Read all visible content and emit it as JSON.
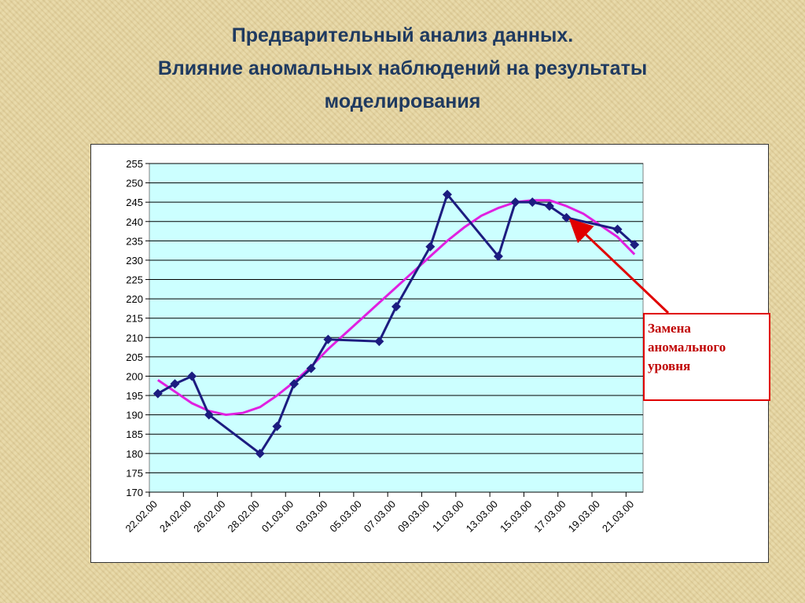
{
  "chart_data": {
    "type": "line",
    "title": "Предварительный анализ данных.",
    "subtitle": "Влияние аномальных наблюдений на результаты моделирования",
    "annotation": "Замена аномального уровня",
    "categories": [
      "22.02.00",
      null,
      "24.02.00",
      null,
      "26.02.00",
      null,
      "28.02.00",
      null,
      "01.03.00",
      null,
      "03.03.00",
      null,
      "05.03.00",
      null,
      "07.03.00",
      null,
      "09.03.00",
      null,
      "11.03.00",
      null,
      "13.03.00",
      null,
      "15.03.00",
      null,
      "17.03.00",
      null,
      "19.03.00",
      null,
      "21.03.00"
    ],
    "series": [
      {
        "color": "#1c1c80",
        "marker": "diamond",
        "values": [
          195.5,
          198,
          200,
          190,
          null,
          null,
          180,
          187,
          198,
          202,
          209.5,
          null,
          null,
          209,
          218,
          null,
          233.5,
          247,
          null,
          null,
          231,
          245,
          245,
          244,
          241,
          null,
          null,
          238,
          234
        ]
      },
      {
        "color": "#e020e0",
        "marker": "none",
        "values": [
          199,
          196,
          193,
          191,
          190,
          190.5,
          192,
          195,
          198.5,
          202.5,
          207,
          211,
          215,
          219,
          223,
          227,
          231,
          235,
          238.5,
          241.5,
          243.5,
          245,
          245.5,
          245.5,
          244,
          242,
          239,
          236,
          231.5
        ]
      }
    ],
    "ylim": [
      170,
      255
    ],
    "yticks": [
      170,
      175,
      180,
      185,
      190,
      195,
      200,
      205,
      210,
      215,
      220,
      225,
      230,
      235,
      240,
      245,
      250,
      255
    ],
    "grid": true,
    "plot_color": "#ccffff"
  }
}
